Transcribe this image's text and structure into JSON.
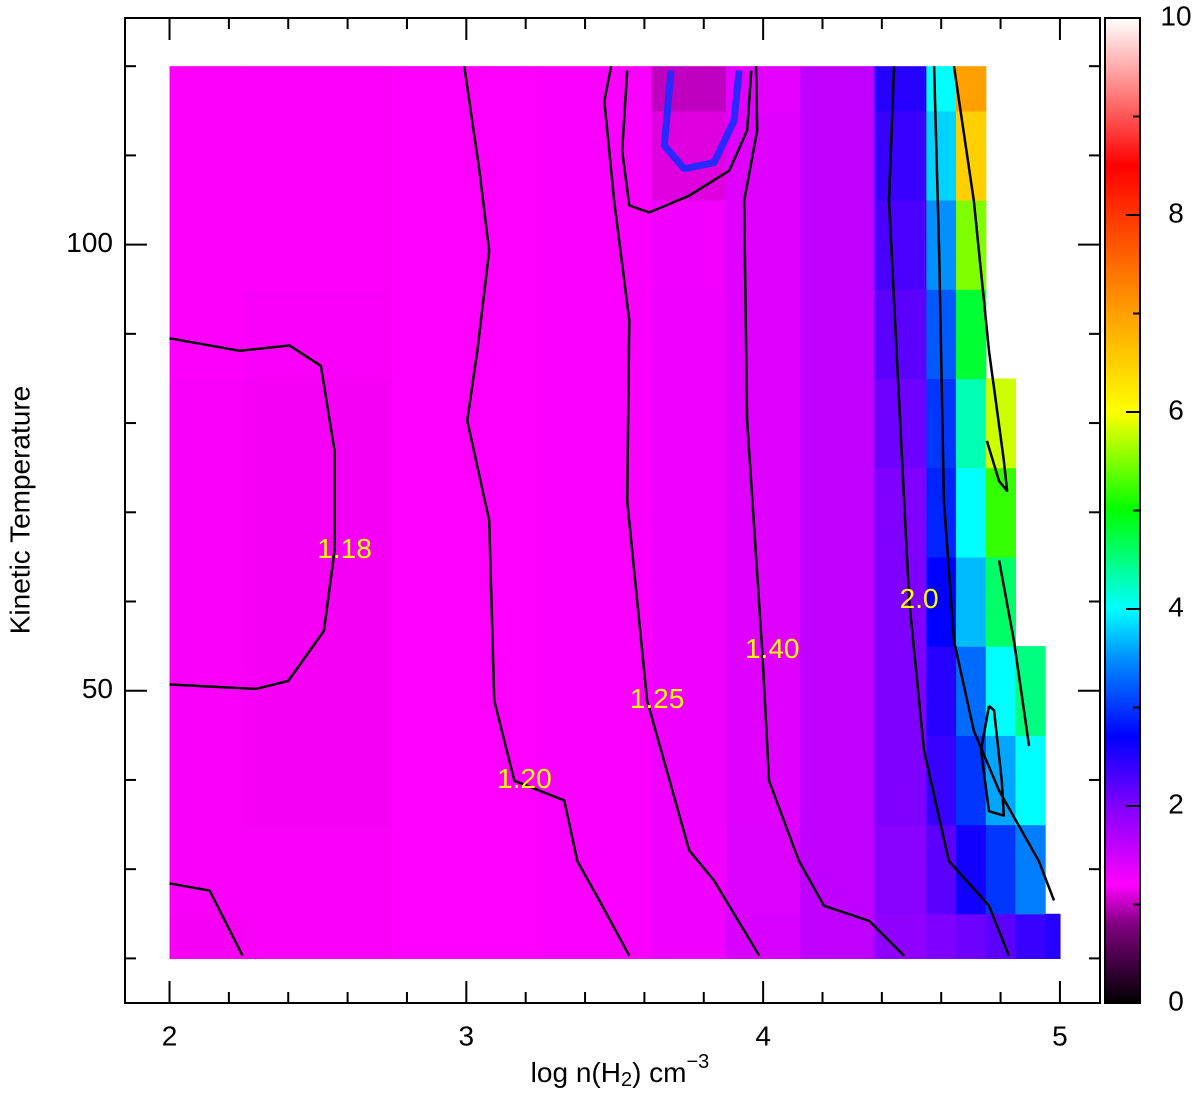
{
  "chart_data": {
    "type": "contour",
    "xlabel": {
      "pre": "log n(H",
      "sub": "2",
      "mid": ") cm",
      "sup": "−3"
    },
    "ylabel": "Kinetic Temperature",
    "xlim": [
      1.85,
      5.135
    ],
    "ylim": [
      15,
      125.4
    ],
    "xticks": [
      2,
      3,
      4,
      5
    ],
    "xminorticks": [
      2.2,
      2.4,
      2.6,
      2.8,
      3.2,
      3.4,
      3.6,
      3.8,
      4.2,
      4.4,
      4.6,
      4.8
    ],
    "yticks": [
      50,
      100
    ],
    "yminorticks": [
      20,
      30,
      40,
      60,
      70,
      80,
      90,
      110,
      120
    ],
    "colorbar": {
      "lim": [
        0,
        10
      ],
      "ticks": [
        0,
        2,
        4,
        6,
        8,
        10
      ],
      "minorticks": [
        1,
        3,
        5,
        7,
        9
      ]
    },
    "colormap": [
      [
        0,
        "#000000"
      ],
      [
        0.8,
        "#800080"
      ],
      [
        1.2,
        "#ff00ff"
      ],
      [
        1.6,
        "#c000ff"
      ],
      [
        2,
        "#8000ff"
      ],
      [
        2.7,
        "#0000ff"
      ],
      [
        3.5,
        "#0090ff"
      ],
      [
        4,
        "#00ffff"
      ],
      [
        5,
        "#00ff00"
      ],
      [
        6,
        "#ffff00"
      ],
      [
        7,
        "#ffa000"
      ],
      [
        8.5,
        "#ff0000"
      ],
      [
        10,
        "#ffffff"
      ]
    ],
    "x": [
      2.0,
      2.5,
      3.0,
      3.5,
      3.75,
      4.0,
      4.25,
      4.5,
      4.6,
      4.7,
      4.8,
      4.9,
      5.0
    ],
    "y": [
      20,
      30,
      40,
      50,
      60,
      70,
      80,
      90,
      100,
      110,
      120
    ],
    "z": [
      [
        1.17,
        1.18,
        1.2,
        1.24,
        1.3,
        1.45,
        1.6,
        1.9,
        2.0,
        2.1,
        2.2,
        2.4,
        2.5
      ],
      [
        1.18,
        1.18,
        1.2,
        1.24,
        1.3,
        1.42,
        1.6,
        1.95,
        2.2,
        2.6,
        3.0,
        3.4,
        null
      ],
      [
        1.18,
        1.17,
        1.2,
        1.24,
        1.3,
        1.4,
        1.6,
        2.0,
        2.4,
        3.0,
        3.6,
        4.0,
        null
      ],
      [
        1.18,
        1.17,
        1.2,
        1.24,
        1.3,
        1.4,
        1.6,
        2.0,
        2.5,
        3.3,
        4.0,
        4.5,
        null
      ],
      [
        1.18,
        1.17,
        1.2,
        1.24,
        1.3,
        1.4,
        1.6,
        2.0,
        2.7,
        3.7,
        4.6,
        null,
        null
      ],
      [
        1.18,
        1.17,
        1.2,
        1.24,
        1.3,
        1.4,
        1.6,
        2.0,
        2.9,
        4.0,
        5.2,
        null,
        null
      ],
      [
        1.18,
        1.17,
        1.2,
        1.24,
        1.3,
        1.4,
        1.6,
        2.1,
        3.0,
        4.3,
        5.8,
        null,
        null
      ],
      [
        1.19,
        1.18,
        1.2,
        1.24,
        1.3,
        1.4,
        1.6,
        2.2,
        3.2,
        4.8,
        null,
        null,
        null
      ],
      [
        1.19,
        1.19,
        1.2,
        1.24,
        1.28,
        1.4,
        1.6,
        2.3,
        3.5,
        5.5,
        null,
        null,
        null
      ],
      [
        1.19,
        1.19,
        1.2,
        1.24,
        1.1,
        1.4,
        1.6,
        2.4,
        3.8,
        6.5,
        null,
        null,
        null
      ],
      [
        1.19,
        1.19,
        1.2,
        1.24,
        1.0,
        1.38,
        1.6,
        2.5,
        4.0,
        7.0,
        null,
        null,
        null
      ]
    ],
    "contours": [
      {
        "label": "1.18",
        "color": "#000000",
        "x": [
          2.0,
          2.236,
          2.404,
          2.51,
          2.556,
          2.556,
          2.52,
          2.4,
          2.29,
          2.0
        ],
        "values": [
          89.5,
          88.1,
          88.7,
          86.4,
          76.9,
          65.7,
          56.7,
          51.1,
          50.2,
          50.7
        ]
      },
      {
        "color": "#000000",
        "x": [
          2.0,
          2.135,
          2.246
        ],
        "values": [
          28.4,
          27.6,
          20.3
        ]
      },
      {
        "label": "1.20",
        "color": "#000000",
        "x": [
          2.993,
          3.044,
          3.077,
          3.037,
          3.003,
          3.077,
          3.094,
          3.162,
          3.33,
          3.374,
          3.448,
          3.549
        ],
        "values": [
          120,
          108.3,
          99.3,
          88.1,
          80.3,
          69.1,
          48.9,
          39.9,
          37.7,
          30.9,
          26.5,
          20.3
        ]
      },
      {
        "label": "1.25",
        "color": "#000000",
        "x": [
          3.488,
          3.465,
          3.498,
          3.549,
          3.542,
          3.609,
          3.751,
          3.835,
          3.987
        ],
        "values": [
          120,
          116.1,
          104.9,
          91.5,
          71.3,
          48.9,
          32.1,
          28.7,
          20.3
        ]
      },
      {
        "label": "1.40",
        "color": "#000000",
        "x": [
          3.976,
          3.98,
          3.936,
          3.946,
          3.997,
          4.02,
          4.121,
          4.205,
          4.357,
          4.475
        ],
        "values": [
          120,
          112.8,
          104.9,
          80.3,
          54.5,
          39.9,
          30.9,
          25.9,
          24.2,
          20.3
        ]
      },
      {
        "label": "2.0",
        "color": "#000000",
        "x": [
          4.441,
          4.424,
          4.458,
          4.492,
          4.542,
          4.626,
          4.761,
          4.828
        ],
        "values": [
          120,
          104.9,
          82.5,
          60.1,
          43.3,
          30.9,
          25.9,
          20.3
        ]
      },
      {
        "color": "#000000",
        "x": [
          3.542,
          3.525,
          3.549,
          3.616,
          3.751,
          3.886,
          3.946,
          3.96
        ],
        "values": [
          119.5,
          110.5,
          104.4,
          103.6,
          105.5,
          108.3,
          112.8,
          119.5
        ]
      },
      {
        "color": "#2828ff",
        "x": [
          3.69,
          3.667,
          3.734,
          3.835,
          3.902,
          3.919
        ],
        "values": [
          119.5,
          111.1,
          108.5,
          109.2,
          113.9,
          119.5
        ]
      },
      {
        "color": "#000000",
        "x": [
          4.576,
          4.593,
          4.609,
          4.643,
          4.71,
          4.795,
          4.929,
          4.98
        ],
        "values": [
          120,
          99.3,
          71.3,
          55.6,
          45.5,
          38.8,
          30.9,
          26.5
        ]
      },
      {
        "color": "#000000",
        "x": [
          4.643,
          4.71,
          4.761,
          4.811,
          4.822,
          4.795,
          4.754
        ],
        "values": [
          120,
          104.9,
          88.1,
          75.8,
          72.4,
          73.5,
          78.0
        ]
      },
      {
        "color": "#000000",
        "x": [
          4.761,
          4.734,
          4.761,
          4.811,
          4.804,
          4.778,
          4.761
        ],
        "values": [
          48.3,
          43.3,
          36.5,
          36.0,
          39.9,
          47.8,
          48.3
        ]
      },
      {
        "color": "#000000",
        "x": [
          4.795,
          4.845,
          4.896
        ],
        "values": [
          64.6,
          55.6,
          43.8
        ]
      }
    ]
  }
}
